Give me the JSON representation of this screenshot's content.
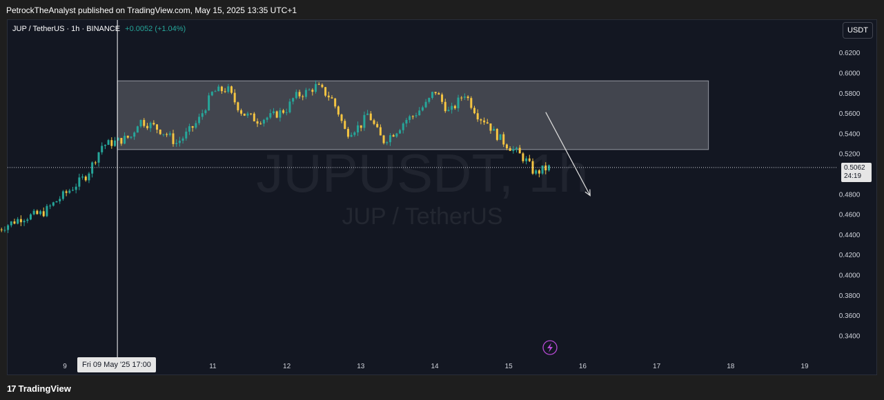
{
  "header": {
    "published_by": "PetrockTheAnalyst published on TradingView.com, May 15, 2025 13:35 UTC+1"
  },
  "legend": {
    "symbol": "JUP / TetherUS · 1h · BINANCE",
    "change": "+0.0052 (+1.04%)"
  },
  "toolbar": {
    "currency_label": "USDT"
  },
  "watermark": {
    "ticker": "JUPUSDT, 1h",
    "name": "JUP / TetherUS"
  },
  "footer": {
    "brand": "TradingView"
  },
  "last_price": {
    "price": "0.5062",
    "countdown": "24:19"
  },
  "crosshair": {
    "time_label": "Fri 09 May '25   17:00"
  },
  "colors": {
    "up": "#26a69a",
    "down": "#f5c542",
    "background": "#131722",
    "box": "#ffffff",
    "arrow": "#d9d9d9",
    "text": "#d1d4dc"
  },
  "icons": {
    "alert": "lightning-icon",
    "logo": "tradingview-logo-icon"
  },
  "chart_data": {
    "type": "candlestick",
    "symbol": "JUPUSDT",
    "interval": "1h",
    "y_ticks": [
      "0.6200",
      "0.6000",
      "0.5800",
      "0.5600",
      "0.5400",
      "0.5200",
      "0.4800",
      "0.4600",
      "0.4400",
      "0.4200",
      "0.4000",
      "0.3800",
      "0.3600",
      "0.3400"
    ],
    "x_ticks": [
      "9",
      "11",
      "12",
      "13",
      "14",
      "15",
      "16",
      "17",
      "18",
      "19"
    ],
    "ylim": [
      0.32,
      0.635
    ],
    "xlim_days": [
      8.1,
      19.8
    ],
    "key_levels": [
      0.4425,
      0.5062,
      0.524,
      0.592
    ],
    "range_box": {
      "from_day": 9.71,
      "to_day": 17.7,
      "top": 0.592,
      "bottom": 0.524
    },
    "forecast_arrow": {
      "from": [
        15.5,
        0.561
      ],
      "to": [
        16.1,
        0.4785
      ]
    },
    "crosshair_day": 9.71,
    "last_price": 0.5062,
    "path": [
      [
        8.1,
        0.445
      ],
      [
        8.4,
        0.456
      ],
      [
        8.7,
        0.461
      ],
      [
        8.9,
        0.474
      ],
      [
        9.1,
        0.486
      ],
      [
        9.3,
        0.499
      ],
      [
        9.5,
        0.528
      ],
      [
        9.7,
        0.532
      ],
      [
        9.9,
        0.537
      ],
      [
        10.0,
        0.553
      ],
      [
        10.2,
        0.547
      ],
      [
        10.4,
        0.538
      ],
      [
        10.5,
        0.53
      ],
      [
        10.6,
        0.536
      ],
      [
        10.8,
        0.552
      ],
      [
        11.0,
        0.581
      ],
      [
        11.2,
        0.584
      ],
      [
        11.3,
        0.571
      ],
      [
        11.4,
        0.56
      ],
      [
        11.6,
        0.553
      ],
      [
        11.8,
        0.557
      ],
      [
        12.0,
        0.564
      ],
      [
        12.1,
        0.576
      ],
      [
        12.3,
        0.582
      ],
      [
        12.4,
        0.587
      ],
      [
        12.6,
        0.575
      ],
      [
        12.7,
        0.56
      ],
      [
        12.8,
        0.54
      ],
      [
        13.0,
        0.548
      ],
      [
        13.1,
        0.56
      ],
      [
        13.2,
        0.545
      ],
      [
        13.3,
        0.532
      ],
      [
        13.5,
        0.544
      ],
      [
        13.6,
        0.553
      ],
      [
        13.7,
        0.557
      ],
      [
        13.9,
        0.57
      ],
      [
        14.0,
        0.583
      ],
      [
        14.1,
        0.571
      ],
      [
        14.2,
        0.56
      ],
      [
        14.3,
        0.57
      ],
      [
        14.4,
        0.58
      ],
      [
        14.5,
        0.568
      ],
      [
        14.6,
        0.556
      ],
      [
        14.7,
        0.552
      ],
      [
        14.8,
        0.541
      ],
      [
        14.95,
        0.53
      ],
      [
        15.1,
        0.522
      ],
      [
        15.25,
        0.512
      ],
      [
        15.35,
        0.5
      ],
      [
        15.45,
        0.504
      ],
      [
        15.55,
        0.5062
      ]
    ]
  }
}
